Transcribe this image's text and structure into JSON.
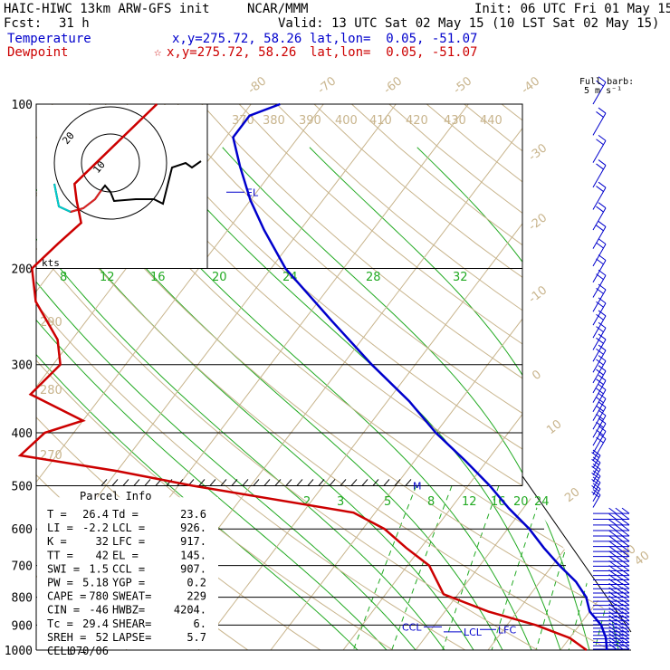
{
  "header": {
    "model": "HAIC-HIWC 13km ARW-GFS init",
    "center": "NCAR/MMM",
    "init": "Init: 06 UTC Fri 01 May 15",
    "fcst_label": "Fcst:",
    "fcst_value": "31 h",
    "valid": "Valid: 13 UTC Sat 02 May 15 (10 LST Sat 02 May 15)"
  },
  "legend": {
    "temperature": {
      "label": "Temperature",
      "xy": "x,y=275.72, 58.26",
      "latlon": "lat,lon=  0.05, -51.07",
      "color": "#0000cc"
    },
    "dewpoint": {
      "label": "Dewpoint",
      "xy": "x,y=275.72, 58.26",
      "latlon": "lat,lon=  0.05, -51.07",
      "color": "#cc0000",
      "marker": "☆"
    }
  },
  "barb_key": {
    "line1": "Full barb:",
    "line2": "5 m s⁻¹"
  },
  "hodograph": {
    "units": "kts",
    "ring_label": "20",
    "center_label": "10"
  },
  "parcel_info": {
    "title": "Parcel Info",
    "rows": [
      [
        "T  =",
        "26.4",
        "Td =",
        "23.6"
      ],
      [
        "LI =",
        "-2.2",
        "LCL =",
        "926."
      ],
      [
        "K  =",
        "32",
        "LFC =",
        "917."
      ],
      [
        "TT =",
        "42",
        "EL =",
        "145."
      ],
      [
        "SWI =",
        "1.5",
        "CCL =",
        "907."
      ],
      [
        "PW =",
        "5.18",
        "YGP =",
        "0.2"
      ],
      [
        "CAPE =",
        "780",
        "SWEAT=",
        "229"
      ],
      [
        "CIN =",
        "-46",
        "HWBZ=",
        "4204."
      ],
      [
        "Tc =",
        "29.4",
        "SHEAR=",
        "6."
      ],
      [
        "SREH =",
        "52",
        "LAPSE=",
        "5.7"
      ],
      [
        "CELL =",
        "070/06",
        "",
        ""
      ]
    ]
  },
  "level_markers": [
    "EL",
    "CCL",
    "LCL",
    "LFC",
    "M"
  ],
  "chart_data": {
    "type": "line",
    "ylabel": "",
    "yscale": "log",
    "y_ticks": [
      100,
      200,
      300,
      400,
      500,
      600,
      700,
      800,
      900,
      1000
    ],
    "isotherm_labels": [
      "-80",
      "-70",
      "-60",
      "-50",
      "-40",
      "-30",
      "-20",
      "-10",
      "0",
      "10",
      "20",
      "30",
      "40"
    ],
    "theta_labels": [
      "370",
      "380",
      "390",
      "400",
      "410",
      "420",
      "430",
      "440",
      "290",
      "280",
      "270"
    ],
    "mixing_ratio_labels": [
      "8",
      "12",
      "16",
      "20",
      "24",
      "28",
      "32",
      "2",
      "3",
      "5",
      "8",
      "12",
      "16",
      "20",
      "24"
    ],
    "series": [
      {
        "name": "Temperature",
        "color": "#0000cc",
        "points": [
          [
            100,
            -76
          ],
          [
            105,
            -79
          ],
          [
            115,
            -79
          ],
          [
            130,
            -75
          ],
          [
            150,
            -70
          ],
          [
            170,
            -65
          ],
          [
            200,
            -58
          ],
          [
            250,
            -46
          ],
          [
            300,
            -36
          ],
          [
            350,
            -27
          ],
          [
            400,
            -20
          ],
          [
            450,
            -13
          ],
          [
            500,
            -7
          ],
          [
            550,
            -2
          ],
          [
            600,
            3
          ],
          [
            650,
            7
          ],
          [
            700,
            11
          ],
          [
            750,
            15
          ],
          [
            800,
            18
          ],
          [
            850,
            20
          ],
          [
            900,
            23
          ],
          [
            950,
            25
          ],
          [
            1000,
            26.4
          ]
        ]
      },
      {
        "name": "Dewpoint",
        "color": "#cc0000",
        "points": [
          [
            100,
            -93
          ],
          [
            125,
            -95
          ],
          [
            140,
            -96
          ],
          [
            150,
            -94
          ],
          [
            165,
            -91
          ],
          [
            180,
            -92
          ],
          [
            200,
            -93
          ],
          [
            230,
            -89
          ],
          [
            270,
            -82
          ],
          [
            300,
            -79
          ],
          [
            340,
            -80
          ],
          [
            380,
            -70
          ],
          [
            400,
            -74
          ],
          [
            440,
            -75
          ],
          [
            470,
            -60
          ],
          [
            500,
            -48
          ],
          [
            560,
            -23
          ],
          [
            600,
            -17
          ],
          [
            650,
            -12
          ],
          [
            700,
            -7
          ],
          [
            790,
            -2
          ],
          [
            850,
            6
          ],
          [
            900,
            14
          ],
          [
            950,
            20
          ],
          [
            1000,
            23.6
          ]
        ]
      }
    ]
  }
}
